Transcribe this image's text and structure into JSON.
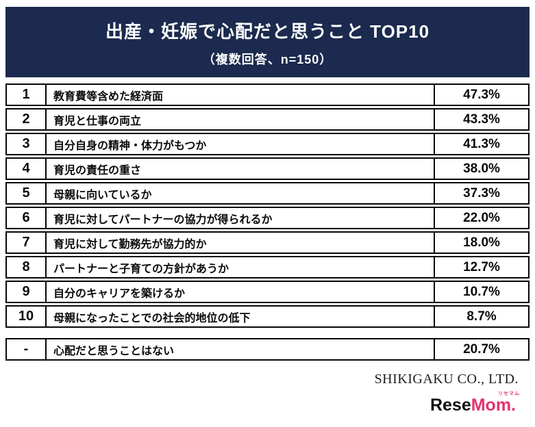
{
  "chart_data": {
    "type": "table",
    "title": "出産・妊娠で心配だと思うこと TOP10",
    "subtitle": "（複数回答、n=150）",
    "rows": [
      {
        "rank": "1",
        "item": "教育費等含めた経済面",
        "percent": "47.3%",
        "value": 47.3
      },
      {
        "rank": "2",
        "item": "育児と仕事の両立",
        "percent": "43.3%",
        "value": 43.3
      },
      {
        "rank": "3",
        "item": "自分自身の精神・体力がもつか",
        "percent": "41.3%",
        "value": 41.3
      },
      {
        "rank": "4",
        "item": "育児の責任の重さ",
        "percent": "38.0%",
        "value": 38.0
      },
      {
        "rank": "5",
        "item": "母親に向いているか",
        "percent": "37.3%",
        "value": 37.3
      },
      {
        "rank": "6",
        "item": "育児に対してパートナーの協力が得られるか",
        "percent": "22.0%",
        "value": 22.0
      },
      {
        "rank": "7",
        "item": "育児に対して勤務先が協力的か",
        "percent": "18.0%",
        "value": 18.0
      },
      {
        "rank": "8",
        "item": "パートナーと子育ての方針があうか",
        "percent": "12.7%",
        "value": 12.7
      },
      {
        "rank": "9",
        "item": "自分のキャリアを築けるか",
        "percent": "10.7%",
        "value": 10.7
      },
      {
        "rank": "10",
        "item": "母親になったことでの社会的地位の低下",
        "percent": "8.7%",
        "value": 8.7
      }
    ],
    "extra_row": {
      "rank": "-",
      "item": "心配だと思うことはない",
      "percent": "20.7%",
      "value": 20.7
    }
  },
  "footer": {
    "company": "SHIKIGAKU CO., LTD."
  },
  "logo": {
    "prefix": "Rese",
    "suffix": "Mom.",
    "ruby": "リセマム"
  },
  "colors": {
    "header_bg": "#1b2a4e",
    "border": "#060606",
    "logo_accent": "#e4326e"
  }
}
